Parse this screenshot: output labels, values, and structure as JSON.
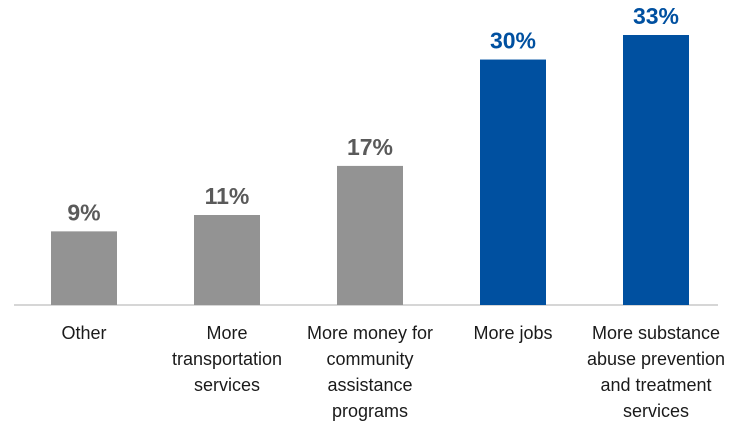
{
  "chart_data": {
    "type": "bar",
    "categories": [
      [
        "Other"
      ],
      [
        "More",
        "transportation",
        "services"
      ],
      [
        "More money for",
        "community",
        "assistance",
        "programs"
      ],
      [
        "More jobs"
      ],
      [
        "More substance",
        "abuse prevention",
        "and treatment",
        "services"
      ]
    ],
    "values": [
      9,
      11,
      17,
      30,
      33
    ],
    "value_labels": [
      "9%",
      "11%",
      "17%",
      "30%",
      "33%"
    ],
    "bar_colors": [
      "#939393",
      "#939393",
      "#939393",
      "#0050a0",
      "#0050a0"
    ],
    "label_colors": [
      "#5a5a5a",
      "#5a5a5a",
      "#5a5a5a",
      "#0050a0",
      "#0050a0"
    ],
    "ylim": [
      0,
      33
    ],
    "grid": false,
    "title": "",
    "xlabel": "",
    "ylabel": ""
  }
}
